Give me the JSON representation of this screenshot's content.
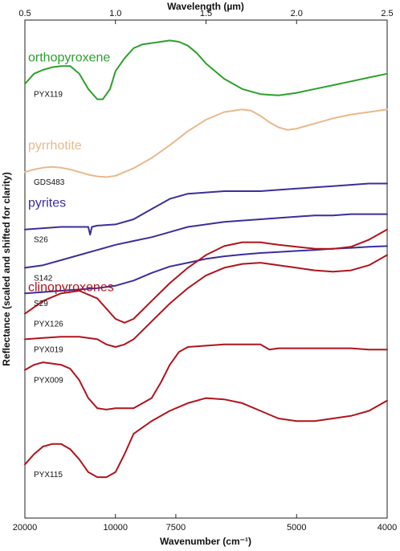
{
  "chart_data": {
    "type": "line",
    "title": "",
    "top_axis": {
      "label": "Wavelength (µm)",
      "ticks": [
        {
          "value": 0.5,
          "label": "0.5"
        },
        {
          "value": 1.0,
          "label": "1.0"
        },
        {
          "value": 1.5,
          "label": "1.5"
        },
        {
          "value": 2.0,
          "label": "2.0"
        },
        {
          "value": 2.5,
          "label": "2.5"
        }
      ],
      "xlim": [
        0.5,
        2.5
      ]
    },
    "bottom_axis": {
      "label": "Wavenumber (cm⁻¹)",
      "ticks": [
        {
          "value": 20000,
          "label": "20000"
        },
        {
          "value": 10000,
          "label": "10000"
        },
        {
          "value": 7500,
          "label": "7500"
        },
        {
          "value": 5000,
          "label": "5000"
        },
        {
          "value": 4000,
          "label": "4000"
        }
      ]
    },
    "ylabel": "Reflectance (scaled and shifted for clarity)",
    "grid": false,
    "groups": [
      {
        "name": "orthopyroxene",
        "color": "#2ca02c"
      },
      {
        "name": "pyrrhotite",
        "color": "#e8b98a"
      },
      {
        "name": "pyrites",
        "color": "#3a2f9a"
      },
      {
        "name": "clinopyroxenes",
        "color": "#b0141c"
      }
    ],
    "series": [
      {
        "name": "PYX119",
        "group": "orthopyroxene",
        "color": "#2ca02c",
        "x": [
          0.5,
          0.55,
          0.6,
          0.65,
          0.7,
          0.75,
          0.8,
          0.85,
          0.9,
          0.93,
          0.97,
          1.0,
          1.05,
          1.1,
          1.15,
          1.2,
          1.25,
          1.3,
          1.35,
          1.4,
          1.45,
          1.5,
          1.6,
          1.7,
          1.8,
          1.9,
          2.0,
          2.1,
          2.2,
          2.3,
          2.4,
          2.5
        ],
        "y": [
          0.9,
          0.94,
          0.955,
          0.965,
          0.97,
          0.97,
          0.94,
          0.88,
          0.84,
          0.84,
          0.88,
          0.95,
          1.0,
          1.04,
          1.055,
          1.06,
          1.065,
          1.07,
          1.065,
          1.05,
          1.02,
          0.98,
          0.92,
          0.88,
          0.86,
          0.855,
          0.865,
          0.88,
          0.895,
          0.91,
          0.925,
          0.94
        ]
      },
      {
        "name": "GDS483",
        "group": "pyrrhotite",
        "color": "#e8b98a",
        "x": [
          0.5,
          0.55,
          0.6,
          0.65,
          0.7,
          0.75,
          0.8,
          0.85,
          0.9,
          0.95,
          1.0,
          1.1,
          1.2,
          1.3,
          1.4,
          1.5,
          1.6,
          1.7,
          1.75,
          1.8,
          1.85,
          1.9,
          1.95,
          2.0,
          2.1,
          2.2,
          2.3,
          2.4,
          2.5
        ],
        "y": [
          0.555,
          0.565,
          0.572,
          0.575,
          0.572,
          0.565,
          0.555,
          0.545,
          0.538,
          0.535,
          0.54,
          0.57,
          0.61,
          0.66,
          0.715,
          0.76,
          0.79,
          0.8,
          0.795,
          0.775,
          0.75,
          0.73,
          0.72,
          0.725,
          0.745,
          0.765,
          0.78,
          0.79,
          0.8
        ]
      },
      {
        "name": "S26",
        "group": "pyrites",
        "color": "#3a2f9a",
        "x": [
          0.5,
          0.6,
          0.7,
          0.75,
          0.8,
          0.85,
          0.86,
          0.87,
          0.9,
          1.0,
          1.1,
          1.2,
          1.3,
          1.4,
          1.5,
          1.6,
          1.7,
          1.8,
          1.9,
          2.0,
          2.1,
          2.2,
          2.3,
          2.4,
          2.5
        ],
        "y": [
          0.33,
          0.335,
          0.34,
          0.34,
          0.34,
          0.34,
          0.31,
          0.34,
          0.345,
          0.35,
          0.37,
          0.41,
          0.45,
          0.47,
          0.475,
          0.48,
          0.48,
          0.48,
          0.485,
          0.49,
          0.495,
          0.5,
          0.505,
          0.51,
          0.51
        ]
      },
      {
        "name": "S142",
        "group": "pyrites",
        "color": "#3a2f9a",
        "x": [
          0.5,
          0.6,
          0.7,
          0.8,
          0.9,
          1.0,
          1.1,
          1.2,
          1.3,
          1.4,
          1.5,
          1.6,
          1.7,
          1.8,
          1.9,
          2.0,
          2.1,
          2.2,
          2.3,
          2.4,
          2.5
        ],
        "y": [
          0.18,
          0.19,
          0.21,
          0.23,
          0.25,
          0.27,
          0.285,
          0.3,
          0.32,
          0.34,
          0.35,
          0.36,
          0.365,
          0.37,
          0.375,
          0.38,
          0.385,
          0.385,
          0.39,
          0.39,
          0.39
        ]
      },
      {
        "name": "S29",
        "group": "pyrites",
        "color": "#3a2f9a",
        "x": [
          0.5,
          0.6,
          0.7,
          0.8,
          0.9,
          1.0,
          1.1,
          1.2,
          1.3,
          1.4,
          1.5,
          1.6,
          1.7,
          1.8,
          1.9,
          2.0,
          2.1,
          2.2,
          2.3,
          2.4,
          2.5
        ],
        "y": [
          0.08,
          0.085,
          0.09,
          0.095,
          0.1,
          0.11,
          0.13,
          0.16,
          0.185,
          0.2,
          0.215,
          0.225,
          0.232,
          0.238,
          0.242,
          0.246,
          0.25,
          0.255,
          0.258,
          0.262,
          0.265
        ]
      },
      {
        "name": "PYX126",
        "group": "clinopyroxenes",
        "color": "#b0141c",
        "x": [
          0.5,
          0.6,
          0.7,
          0.8,
          0.9,
          0.95,
          1.0,
          1.05,
          1.1,
          1.2,
          1.3,
          1.4,
          1.5,
          1.6,
          1.7,
          1.8,
          1.85,
          1.9,
          2.0,
          2.1,
          2.2,
          2.3,
          2.4,
          2.5
        ],
        "y": [
          0.0,
          0.05,
          0.08,
          0.09,
          0.06,
          0.02,
          -0.02,
          -0.035,
          -0.02,
          0.05,
          0.12,
          0.18,
          0.23,
          0.265,
          0.28,
          0.28,
          0.275,
          0.27,
          0.262,
          0.255,
          0.254,
          0.262,
          0.29,
          0.33
        ]
      },
      {
        "name": "PYX019",
        "group": "clinopyroxenes",
        "color": "#b0141c",
        "x": [
          0.5,
          0.6,
          0.7,
          0.8,
          0.9,
          0.95,
          1.0,
          1.05,
          1.1,
          1.2,
          1.3,
          1.4,
          1.5,
          1.6,
          1.7,
          1.8,
          1.85,
          1.9,
          2.0,
          2.1,
          2.2,
          2.3,
          2.4,
          2.5
        ],
        "y": [
          -0.1,
          -0.095,
          -0.09,
          -0.09,
          -0.1,
          -0.12,
          -0.13,
          -0.12,
          -0.1,
          -0.03,
          0.04,
          0.1,
          0.15,
          0.18,
          0.195,
          0.2,
          0.195,
          0.19,
          0.18,
          0.17,
          0.165,
          0.17,
          0.19,
          0.23
        ]
      },
      {
        "name": "PYX009",
        "group": "clinopyroxenes",
        "color": "#b0141c",
        "x": [
          0.5,
          0.55,
          0.6,
          0.65,
          0.7,
          0.75,
          0.8,
          0.85,
          0.9,
          0.95,
          1.0,
          1.05,
          1.1,
          1.2,
          1.25,
          1.3,
          1.35,
          1.4,
          1.5,
          1.6,
          1.7,
          1.8,
          1.85,
          1.9,
          2.0,
          2.1,
          2.2,
          2.3,
          2.4,
          2.5
        ],
        "y": [
          -0.22,
          -0.2,
          -0.19,
          -0.195,
          -0.2,
          -0.215,
          -0.26,
          -0.33,
          -0.37,
          -0.375,
          -0.37,
          -0.37,
          -0.37,
          -0.33,
          -0.27,
          -0.2,
          -0.15,
          -0.13,
          -0.125,
          -0.12,
          -0.12,
          -0.12,
          -0.14,
          -0.135,
          -0.135,
          -0.135,
          -0.135,
          -0.135,
          -0.14,
          -0.14
        ]
      },
      {
        "name": "PYX115",
        "group": "clinopyroxenes",
        "color": "#b0141c",
        "x": [
          0.5,
          0.55,
          0.6,
          0.65,
          0.7,
          0.75,
          0.8,
          0.85,
          0.9,
          0.95,
          1.0,
          1.05,
          1.1,
          1.2,
          1.3,
          1.4,
          1.5,
          1.6,
          1.7,
          1.8,
          1.9,
          2.0,
          2.1,
          2.2,
          2.3,
          2.4,
          2.5
        ],
        "y": [
          -0.59,
          -0.55,
          -0.52,
          -0.51,
          -0.51,
          -0.53,
          -0.57,
          -0.62,
          -0.64,
          -0.64,
          -0.62,
          -0.55,
          -0.47,
          -0.42,
          -0.38,
          -0.35,
          -0.33,
          -0.335,
          -0.35,
          -0.38,
          -0.41,
          -0.42,
          -0.42,
          -0.41,
          -0.4,
          -0.38,
          -0.34
        ]
      }
    ],
    "ylim": [
      -0.8,
      1.15
    ]
  }
}
